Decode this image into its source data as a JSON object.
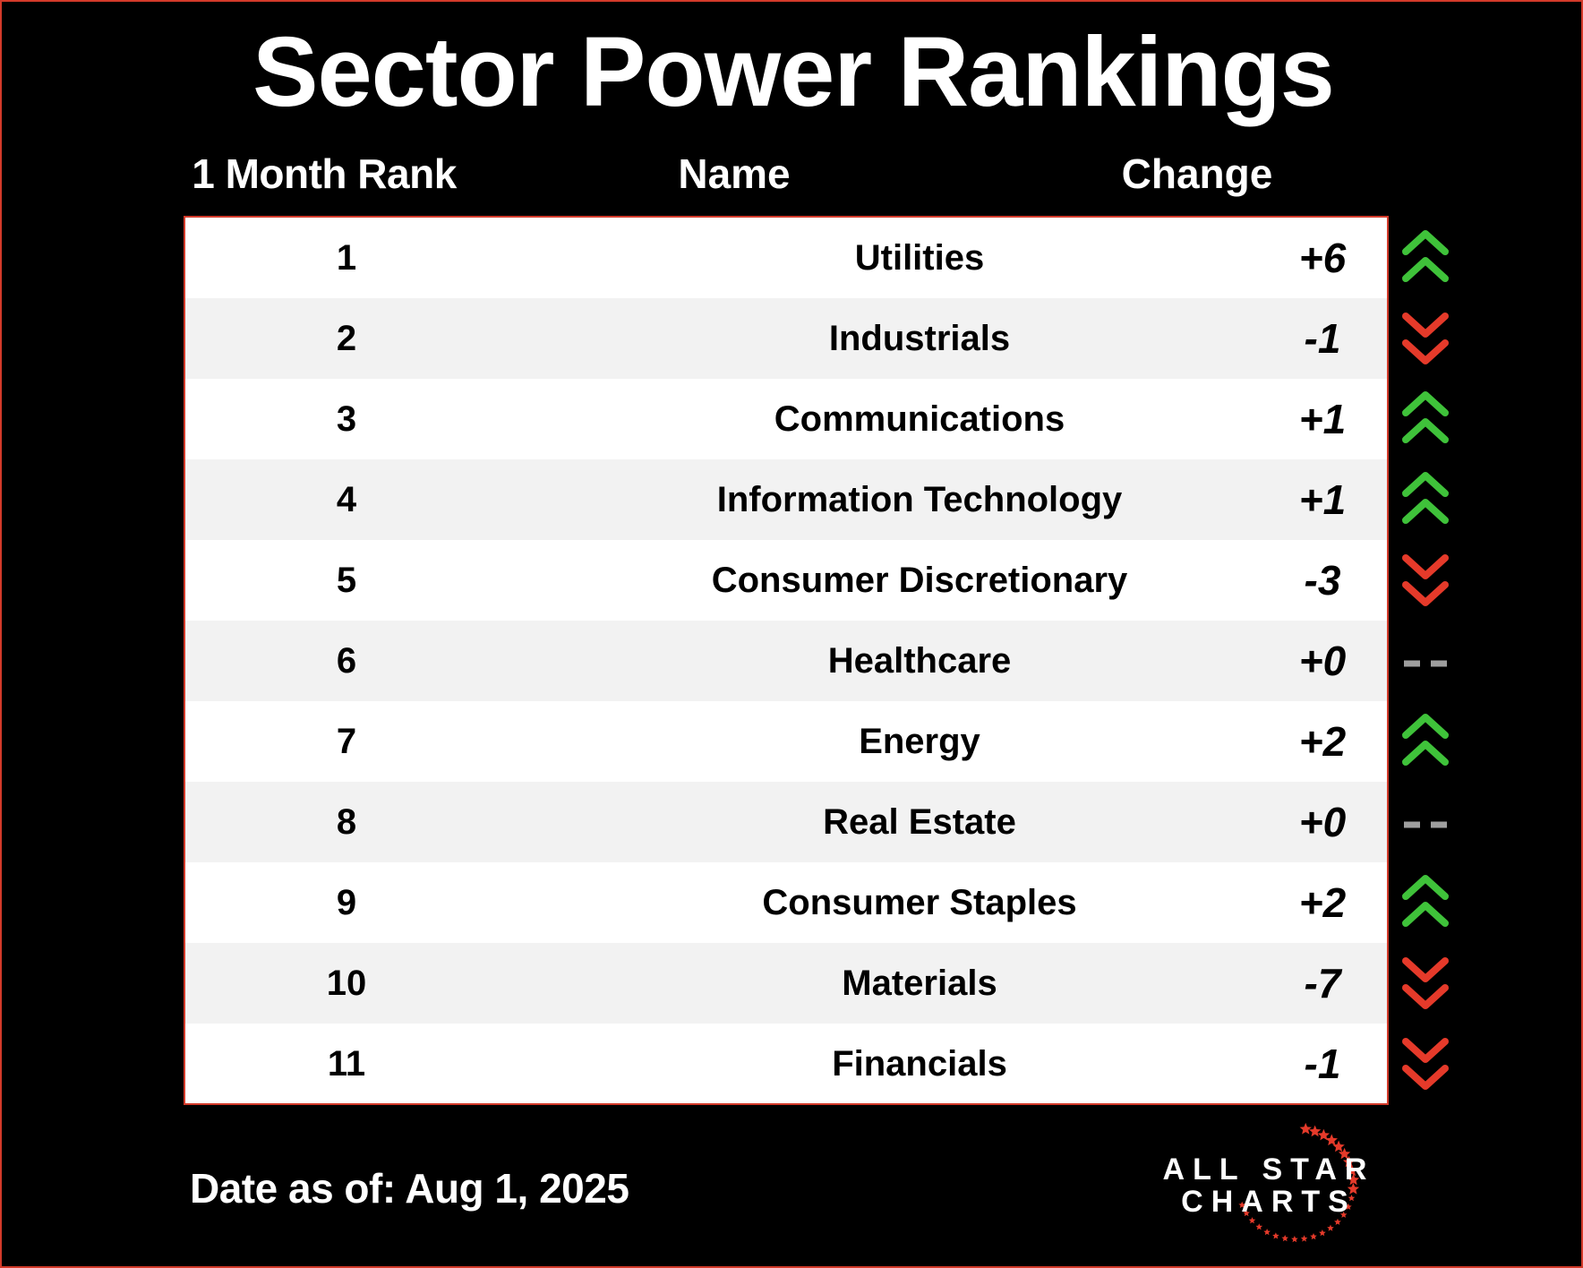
{
  "title": "Sector Power Rankings",
  "columns": {
    "rank": "1 Month Rank",
    "name": "Name",
    "change": "Change"
  },
  "rows": [
    {
      "rank": "1",
      "name": "Utilities",
      "change": "+6",
      "direction": "up"
    },
    {
      "rank": "2",
      "name": "Industrials",
      "change": "-1",
      "direction": "down"
    },
    {
      "rank": "3",
      "name": "Communications",
      "change": "+1",
      "direction": "up"
    },
    {
      "rank": "4",
      "name": "Information Technology",
      "change": "+1",
      "direction": "up"
    },
    {
      "rank": "5",
      "name": "Consumer Discretionary",
      "change": "-3",
      "direction": "down"
    },
    {
      "rank": "6",
      "name": "Healthcare",
      "change": "+0",
      "direction": "flat"
    },
    {
      "rank": "7",
      "name": "Energy",
      "change": "+2",
      "direction": "up"
    },
    {
      "rank": "8",
      "name": "Real Estate",
      "change": "+0",
      "direction": "flat"
    },
    {
      "rank": "9",
      "name": "Consumer Staples",
      "change": "+2",
      "direction": "up"
    },
    {
      "rank": "10",
      "name": "Materials",
      "change": "-7",
      "direction": "down"
    },
    {
      "rank": "11",
      "name": "Financials",
      "change": "-1",
      "direction": "down"
    }
  ],
  "footer": {
    "date": "Date as of: Aug 1, 2025"
  },
  "logo": {
    "line1": "ALL STAR",
    "line2": "CHARTS"
  },
  "colors": {
    "background": "#000000",
    "border": "#d23a2a",
    "up": "#3fc23a",
    "down": "#e53a2a",
    "flat": "#9e9e9e",
    "row_alt": "#f2f2f2"
  },
  "icons": {
    "up": "double-chevron-up-icon",
    "down": "double-chevron-down-icon",
    "flat": "double-dash-icon"
  }
}
